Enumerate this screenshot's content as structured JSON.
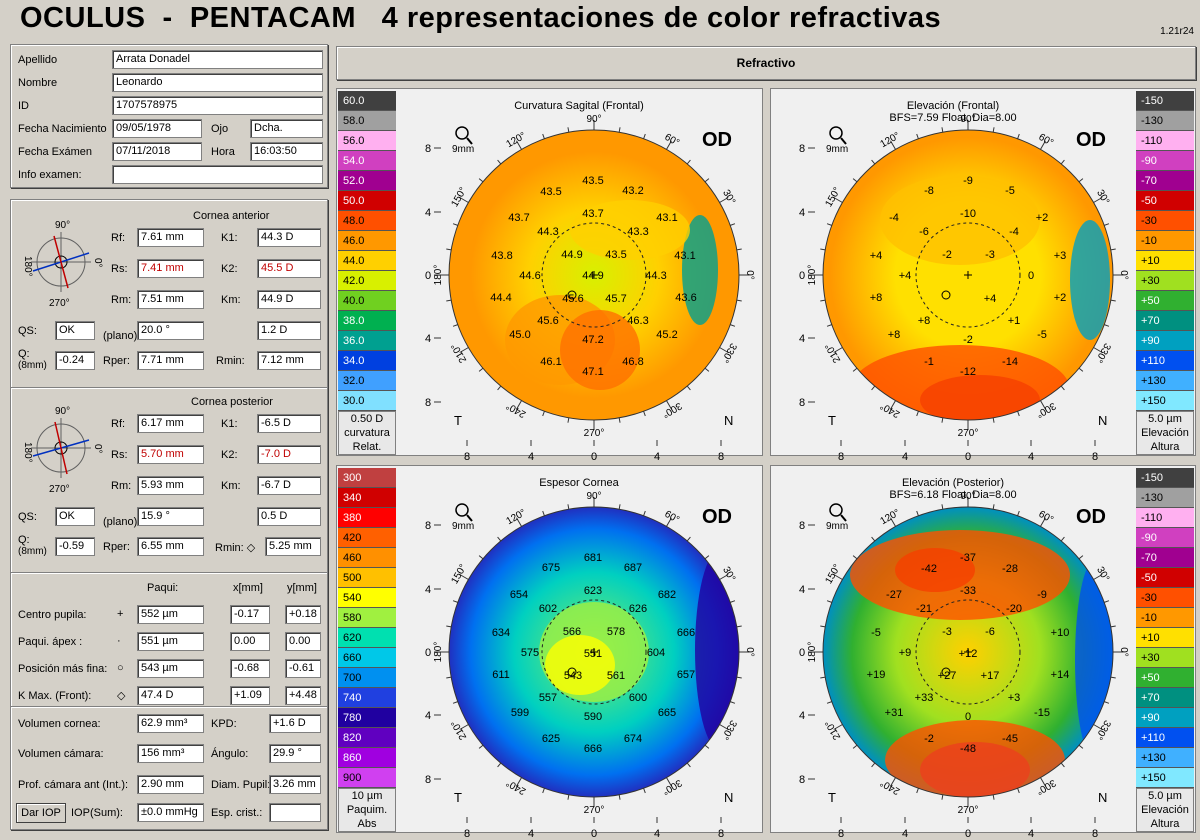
{
  "header": {
    "title": "OCULUS  -  PENTACAM   4 representaciones de color refractivas",
    "version": "1.21r24"
  },
  "patient": {
    "apellido_label": "Apellido",
    "apellido": "Arrata Donadel",
    "nombre_label": "Nombre",
    "nombre": "Leonardo",
    "id_label": "ID",
    "id": "1707578975",
    "nac_label": "Fecha Nacimiento",
    "nac": "09/05/1978",
    "ojo_label": "Ojo",
    "ojo": "Dcha.",
    "exam_label": "Fecha Exámen",
    "exam": "07/11/2018",
    "hora_label": "Hora",
    "hora": "16:03:50",
    "info_label": "Info examen:",
    "info": ""
  },
  "anterior": {
    "title": "Cornea anterior",
    "rf_l": "Rf:",
    "rf": "7.61 mm",
    "k1_l": "K1:",
    "k1": "44.3 D",
    "rs_l": "Rs:",
    "rs": "7.41 mm",
    "k2_l": "K2:",
    "k2": "45.5 D",
    "rm_l": "Rm:",
    "rm": "7.51 mm",
    "km_l": "Km:",
    "km": "44.9 D",
    "qs_l": "QS:",
    "qs": "OK",
    "plano": "(plano)",
    "ang": "20.0 °",
    "astig": "1.2 D",
    "q_l": "Q:",
    "q_sub": "(8mm)",
    "q": "-0.24",
    "rper_l": "Rper:",
    "rper": "7.71 mm",
    "rmin_l": "Rmin:",
    "rmin": "7.12 mm",
    "deg90": "90°",
    "deg180": "180°",
    "deg0": "0°",
    "deg270": "270°"
  },
  "posterior": {
    "title": "Cornea posterior",
    "rf_l": "Rf:",
    "rf": "6.17 mm",
    "k1_l": "K1:",
    "k1": "-6.5 D",
    "rs_l": "Rs:",
    "rs": "5.70 mm",
    "k2_l": "K2:",
    "k2": "-7.0 D",
    "rm_l": "Rm:",
    "rm": "5.93 mm",
    "km_l": "Km:",
    "km": "-6.7 D",
    "qs_l": "QS:",
    "qs": "OK",
    "plano": "(plano)",
    "ang": "15.9 °",
    "astig": "0.5 D",
    "q_l": "Q:",
    "q_sub": "(8mm)",
    "q": "-0.59",
    "rper_l": "Rper:",
    "rper": "6.55 mm",
    "rmin_l": "Rmin: ◇",
    "rmin": "5.25 mm"
  },
  "paqui": {
    "col1": "Paqui:",
    "col2": "x[mm]",
    "col3": "y[mm]",
    "rows": [
      {
        "label": "Centro pupila:",
        "sym": "+",
        "v": "552 µm",
        "x": "-0.17",
        "y": "+0.18"
      },
      {
        "label": "Paqui. ápex :",
        "sym": "·",
        "v": "551 µm",
        "x": "0.00",
        "y": "0.00"
      },
      {
        "label": "Posición más fina:",
        "sym": "○",
        "v": "543 µm",
        "x": "-0.68",
        "y": "-0.61"
      },
      {
        "label": "K Max. (Front):",
        "sym": "◇",
        "v": "47.4 D",
        "x": "+1.09",
        "y": "+4.48"
      }
    ]
  },
  "volumes": {
    "vc_l": "Volumen cornea:",
    "vc": "62.9 mm³",
    "kpd_l": "KPD:",
    "kpd": "+1.6 D",
    "vcam_l": "Volumen cámara:",
    "vcam": "156 mm³",
    "ang_l": "Ángulo:",
    "ang": "29.9 °",
    "prof_l": "Prof. cámara ant (Int.):",
    "prof": "2.90 mm",
    "pup_l": "Diam. Pupil:",
    "pup": "3.26 mm",
    "iop_btn": "Dar IOP",
    "iopsum_l": "IOP(Sum):",
    "iopsum": "±0.0 mmHg",
    "crist_l": "Esp. crist.:",
    "crist": ""
  },
  "refract_header": "Refractivo",
  "scales": {
    "curv": {
      "values": [
        "60.0",
        "58.0",
        "56.0",
        "54.0",
        "52.0",
        "50.0",
        "48.0",
        "46.0",
        "44.0",
        "42.0",
        "40.0",
        "38.0",
        "36.0",
        "34.0",
        "32.0",
        "30.0"
      ],
      "colors": [
        "#404040",
        "#a0a0a0",
        "#ffb0f0",
        "#d040c0",
        "#a00090",
        "#d00000",
        "#ff5000",
        "#ff9800",
        "#ffd000",
        "#d8f000",
        "#70d020",
        "#00b050",
        "#00a090",
        "#0040e0",
        "#40a0ff",
        "#80e0ff"
      ],
      "step": "0.50 D",
      "f1": "curvatura",
      "f2": "Relat."
    },
    "elev": {
      "values": [
        "-150",
        "-130",
        "-110",
        "-90",
        "-70",
        "-50",
        "-30",
        "-10",
        "+10",
        "+30",
        "+50",
        "+70",
        "+90",
        "+110",
        "+130",
        "+150"
      ],
      "colors": [
        "#404040",
        "#a0a0a0",
        "#ffb0f0",
        "#d040c0",
        "#a00090",
        "#d00000",
        "#ff5000",
        "#ff9800",
        "#ffe000",
        "#a0e020",
        "#30b030",
        "#009080",
        "#00a0c0",
        "#0050f0",
        "#40b0ff",
        "#80e8ff"
      ],
      "step": "5.0 µm",
      "f1": "Elevación",
      "f2": "Altura"
    },
    "paq": {
      "values": [
        "300",
        "340",
        "380",
        "420",
        "460",
        "500",
        "540",
        "580",
        "620",
        "660",
        "700",
        "740",
        "780",
        "820",
        "860",
        "900"
      ],
      "colors": [
        "#c04040",
        "#d00000",
        "#ff0000",
        "#ff6000",
        "#ff9000",
        "#ffc000",
        "#ffff00",
        "#a0f040",
        "#00e0b0",
        "#00c8e8",
        "#0090f0",
        "#2040e0",
        "#2000a0",
        "#6000c0",
        "#a000e0",
        "#d040f0"
      ],
      "step": "10 µm",
      "f1": "Paquim.",
      "f2": "Abs"
    },
    "elev2": {
      "values": [
        "-150",
        "-130",
        "-110",
        "-90",
        "-70",
        "-50",
        "-30",
        "-10",
        "+10",
        "+30",
        "+50",
        "+70",
        "+90",
        "+110",
        "+130",
        "+150"
      ],
      "colors": [
        "#404040",
        "#a0a0a0",
        "#ffb0f0",
        "#d040c0",
        "#a00090",
        "#d00000",
        "#ff5000",
        "#ff9800",
        "#ffe000",
        "#a0e020",
        "#30b030",
        "#009080",
        "#00a0c0",
        "#0050f0",
        "#40b0ff",
        "#80e8ff"
      ],
      "step": "5.0 µm",
      "f1": "Elevación",
      "f2": "Altura"
    }
  },
  "maps": [
    {
      "title": "Curvatura Sagital (Frontal)",
      "subtitle": "",
      "eye": "OD",
      "zoom": "9mm",
      "values": [
        [
          "43.5",
          593,
          180
        ],
        [
          "43.2",
          633,
          190
        ],
        [
          "43.5",
          551,
          191
        ],
        [
          "43.7",
          519,
          217
        ],
        [
          "43.7",
          593,
          213
        ],
        [
          "43.1",
          667,
          217
        ],
        [
          "44.3",
          548,
          231
        ],
        [
          "43.3",
          638,
          231
        ],
        [
          "43.8",
          502,
          255
        ],
        [
          "44.9",
          572,
          254
        ],
        [
          "43.5",
          616,
          254
        ],
        [
          "43.1",
          685,
          255
        ],
        [
          "44.6",
          530,
          275
        ],
        [
          "44.9",
          593,
          275
        ],
        [
          "44.3",
          656,
          275
        ],
        [
          "44.4",
          501,
          297
        ],
        [
          "45.6",
          573,
          298
        ],
        [
          "45.7",
          616,
          298
        ],
        [
          "43.6",
          686,
          297
        ],
        [
          "45.6",
          548,
          320
        ],
        [
          "46.3",
          638,
          320
        ],
        [
          "45.0",
          520,
          334
        ],
        [
          "47.2",
          593,
          339
        ],
        [
          "45.2",
          667,
          334
        ],
        [
          "46.1",
          551,
          361
        ],
        [
          "46.8",
          633,
          361
        ],
        [
          "47.1",
          593,
          371
        ]
      ]
    },
    {
      "title": "Elevación (Frontal)",
      "subtitle": "BFS=7.59 Float, Dia=8.00",
      "eye": "OD",
      "zoom": "9mm",
      "values": [
        [
          "-9",
          968,
          180
        ],
        [
          "-8",
          929,
          190
        ],
        [
          "-5",
          1010,
          190
        ],
        [
          "-4",
          894,
          217
        ],
        [
          "-10",
          968,
          213
        ],
        [
          "+2",
          1042,
          217
        ],
        [
          "-6",
          924,
          231
        ],
        [
          "-4",
          1014,
          231
        ],
        [
          "+4",
          876,
          255
        ],
        [
          "-2",
          947,
          254
        ],
        [
          "-3",
          990,
          254
        ],
        [
          "+3",
          1060,
          255
        ],
        [
          "+4",
          905,
          275
        ],
        [
          "0",
          1031,
          275
        ],
        [
          "+8",
          876,
          297
        ],
        [
          "+4",
          990,
          298
        ],
        [
          "+2",
          1060,
          297
        ],
        [
          "+8",
          924,
          320
        ],
        [
          "+1",
          1014,
          320
        ],
        [
          "+8",
          894,
          334
        ],
        [
          "-2",
          968,
          339
        ],
        [
          "-5",
          1042,
          334
        ],
        [
          "-1",
          929,
          361
        ],
        [
          "-14",
          1010,
          361
        ],
        [
          "-12",
          968,
          371
        ]
      ]
    },
    {
      "title": "Espesor Cornea",
      "subtitle": "",
      "eye": "OD",
      "zoom": "9mm",
      "values": [
        [
          "681",
          593,
          557
        ],
        [
          "675",
          551,
          567
        ],
        [
          "687",
          633,
          567
        ],
        [
          "623",
          593,
          590
        ],
        [
          "654",
          519,
          594
        ],
        [
          "682",
          667,
          594
        ],
        [
          "602",
          548,
          608
        ],
        [
          "626",
          638,
          608
        ],
        [
          "634",
          501,
          632
        ],
        [
          "566",
          572,
          631
        ],
        [
          "578",
          616,
          631
        ],
        [
          "666",
          686,
          632
        ],
        [
          "575",
          530,
          652
        ],
        [
          "551",
          593,
          653
        ],
        [
          "604",
          656,
          652
        ],
        [
          "611",
          501,
          674
        ],
        [
          "543",
          573,
          675
        ],
        [
          "561",
          616,
          675
        ],
        [
          "657",
          686,
          674
        ],
        [
          "557",
          548,
          697
        ],
        [
          "600",
          638,
          697
        ],
        [
          "599",
          520,
          712
        ],
        [
          "590",
          593,
          716
        ],
        [
          "665",
          667,
          712
        ],
        [
          "625",
          551,
          738
        ],
        [
          "674",
          633,
          738
        ],
        [
          "666",
          593,
          748
        ]
      ]
    },
    {
      "title": "Elevación (Posterior)",
      "subtitle": "BFS=6.18 Float, Dia=8.00",
      "eye": "OD",
      "zoom": "9mm",
      "values": [
        [
          "-37",
          968,
          557
        ],
        [
          "-42",
          929,
          568
        ],
        [
          "-28",
          1010,
          568
        ],
        [
          "-27",
          894,
          594
        ],
        [
          "-33",
          968,
          590
        ],
        [
          "-9",
          1042,
          594
        ],
        [
          "-21",
          924,
          608
        ],
        [
          "-20",
          1014,
          608
        ],
        [
          "-5",
          876,
          632
        ],
        [
          "-3",
          947,
          631
        ],
        [
          "-6",
          990,
          631
        ],
        [
          "+10",
          1060,
          632
        ],
        [
          "+9",
          905,
          652
        ],
        [
          "+12",
          968,
          653
        ],
        [
          "+19",
          876,
          674
        ],
        [
          "+27",
          947,
          675
        ],
        [
          "+17",
          990,
          675
        ],
        [
          "+14",
          1060,
          674
        ],
        [
          "+33",
          924,
          697
        ],
        [
          "+3",
          1014,
          697
        ],
        [
          "+31",
          894,
          712
        ],
        [
          "0",
          968,
          716
        ],
        [
          "-15",
          1042,
          712
        ],
        [
          "-2",
          929,
          738
        ],
        [
          "-45",
          1010,
          738
        ],
        [
          "-48",
          968,
          748
        ]
      ]
    }
  ],
  "axis": {
    "top_ticks": [
      "8",
      "4",
      "0",
      "4",
      "8"
    ],
    "bottom_ticks": [
      "8",
      "4",
      "0",
      "4",
      "8"
    ],
    "deg90": "90°",
    "deg120": "120°",
    "deg150": "150°",
    "deg180": "180°",
    "deg210": "210°",
    "deg240": "240°",
    "deg270": "270°",
    "deg300": "300°",
    "deg330": "330°",
    "deg0": "0°",
    "deg30": "30°",
    "deg60": "60°",
    "T": "T",
    "N": "N"
  }
}
